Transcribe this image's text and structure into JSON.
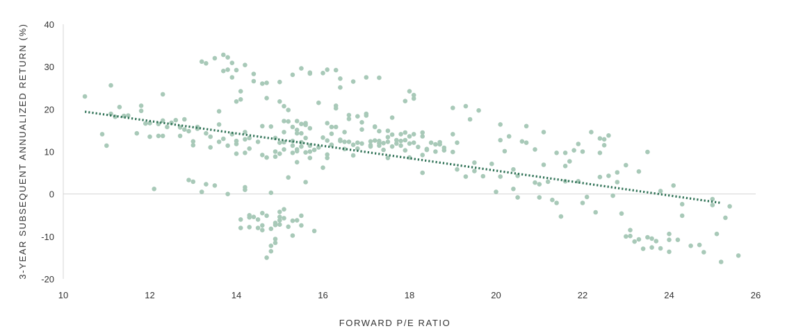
{
  "chart_data": {
    "type": "scatter",
    "xlabel": "FORWARD P/E RATIO",
    "ylabel": "3-YEAR SUBSEQUENT ANNUALIZED RETURN (%)",
    "xlim": [
      10,
      26
    ],
    "ylim": [
      -20,
      40
    ],
    "xticks": [
      "10",
      "12",
      "14",
      "16",
      "18",
      "20",
      "22",
      "24",
      "26"
    ],
    "yticks": [
      "40",
      "30",
      "20",
      "10",
      "0",
      "-10",
      "-20"
    ],
    "grid": false,
    "zero_line": true,
    "point_color": "#a8c9b8",
    "trend_color": "#2e7155",
    "trendline": {
      "style": "dotted",
      "x": [
        10.5,
        25.2
      ],
      "y": [
        19.4,
        -2.1
      ]
    },
    "points": [
      [
        10.5,
        23
      ],
      [
        10.9,
        14.1
      ],
      [
        11.0,
        11.4
      ],
      [
        11.1,
        25.6
      ],
      [
        11.1,
        18.9
      ],
      [
        11.2,
        18.2
      ],
      [
        11.3,
        20.5
      ],
      [
        11.4,
        18.4
      ],
      [
        11.5,
        18.5
      ],
      [
        11.7,
        14.3
      ],
      [
        11.8,
        20.8
      ],
      [
        11.8,
        19.6
      ],
      [
        11.9,
        16.6
      ],
      [
        12.0,
        13.5
      ],
      [
        12.0,
        16.7
      ],
      [
        12.1,
        1.2
      ],
      [
        12.2,
        16.5
      ],
      [
        12.2,
        13.7
      ],
      [
        12.3,
        23.5
      ],
      [
        12.3,
        17.3
      ],
      [
        12.3,
        13.7
      ],
      [
        12.4,
        15.8
      ],
      [
        12.5,
        16.8
      ],
      [
        12.6,
        17.4
      ],
      [
        12.7,
        13.7
      ],
      [
        12.7,
        15.7
      ],
      [
        12.8,
        15.2
      ],
      [
        12.8,
        17.6
      ],
      [
        12.9,
        3.3
      ],
      [
        12.9,
        14.8
      ],
      [
        13.0,
        2.9
      ],
      [
        13.0,
        11.5
      ],
      [
        13.0,
        12.4
      ],
      [
        13.1,
        15.4
      ],
      [
        13.1,
        15.8
      ],
      [
        13.2,
        31.2
      ],
      [
        13.2,
        0.5
      ],
      [
        13.3,
        30.8
      ],
      [
        13.3,
        2.3
      ],
      [
        13.3,
        14.3
      ],
      [
        13.4,
        11.0
      ],
      [
        13.4,
        13.5
      ],
      [
        13.5,
        2.0
      ],
      [
        13.5,
        32.0
      ],
      [
        13.6,
        19.5
      ],
      [
        13.6,
        16.4
      ],
      [
        13.6,
        12.3
      ],
      [
        13.7,
        29.0
      ],
      [
        13.7,
        32.8
      ],
      [
        13.7,
        13.0
      ],
      [
        13.8,
        0
      ],
      [
        13.8,
        32.2
      ],
      [
        13.8,
        11.4
      ],
      [
        13.8,
        29.3
      ],
      [
        13.9,
        30.9
      ],
      [
        13.9,
        27.5
      ],
      [
        13.9,
        14.1
      ],
      [
        14.0,
        12.5
      ],
      [
        14.0,
        29.2
      ],
      [
        14.0,
        11.8
      ],
      [
        14.0,
        9.5
      ],
      [
        14.0,
        21.8
      ],
      [
        14.1,
        22.3
      ],
      [
        14.1,
        -6.0
      ],
      [
        14.1,
        -8.0
      ],
      [
        14.1,
        24.2
      ],
      [
        14.2,
        30.4
      ],
      [
        14.2,
        1.6
      ],
      [
        14.2,
        12.9
      ],
      [
        14.2,
        14.6
      ],
      [
        14.2,
        9.7
      ],
      [
        14.2,
        1.0
      ],
      [
        14.3,
        -5.5
      ],
      [
        14.3,
        -7.8
      ],
      [
        14.3,
        -5.0
      ],
      [
        14.3,
        10.7
      ],
      [
        14.3,
        13.2
      ],
      [
        14.4,
        26.6
      ],
      [
        14.4,
        -5.4
      ],
      [
        14.4,
        28.3
      ],
      [
        14.5,
        -8.0
      ],
      [
        14.5,
        12.3
      ],
      [
        14.5,
        -6.0
      ],
      [
        14.6,
        16.0
      ],
      [
        14.6,
        -4.5
      ],
      [
        14.6,
        -7.4
      ],
      [
        14.6,
        9.2
      ],
      [
        14.6,
        26.0
      ],
      [
        14.6,
        -8.5
      ],
      [
        14.7,
        22.6
      ],
      [
        14.7,
        8.6
      ],
      [
        14.7,
        -5.1
      ],
      [
        14.7,
        26.2
      ],
      [
        14.7,
        -15.0
      ],
      [
        14.8,
        -8.2
      ],
      [
        14.8,
        -12.2
      ],
      [
        14.8,
        15.9
      ],
      [
        14.8,
        0.3
      ],
      [
        14.8,
        -13.5
      ],
      [
        14.9,
        -6.8
      ],
      [
        14.9,
        -11.5
      ],
      [
        14.9,
        10.0
      ],
      [
        14.9,
        -10.6
      ],
      [
        14.9,
        8.8
      ],
      [
        14.9,
        -7.3
      ],
      [
        14.9,
        13.2
      ],
      [
        15.0,
        -5.4
      ],
      [
        15.0,
        -4.2
      ],
      [
        15.0,
        26.4
      ],
      [
        15.0,
        -7.2
      ],
      [
        15.0,
        9.5
      ],
      [
        15.0,
        12.1
      ],
      [
        15.0,
        -6.2
      ],
      [
        15.0,
        21.8
      ],
      [
        15.1,
        -3.6
      ],
      [
        15.1,
        17.2
      ],
      [
        15.1,
        12.2
      ],
      [
        15.1,
        10.5
      ],
      [
        15.1,
        14.6
      ],
      [
        15.1,
        20.7
      ],
      [
        15.1,
        -5.7
      ],
      [
        15.2,
        3.9
      ],
      [
        15.2,
        17.1
      ],
      [
        15.2,
        19.8
      ],
      [
        15.2,
        -7.7
      ],
      [
        15.3,
        28.1
      ],
      [
        15.3,
        9.7
      ],
      [
        15.3,
        -6.3
      ],
      [
        15.3,
        15.8
      ],
      [
        15.3,
        11.4
      ],
      [
        15.3,
        12.5
      ],
      [
        15.3,
        -9.8
      ],
      [
        15.4,
        15.1
      ],
      [
        15.4,
        17.2
      ],
      [
        15.4,
        10.1
      ],
      [
        15.4,
        -6.2
      ],
      [
        15.4,
        14.3
      ],
      [
        15.4,
        7.5
      ],
      [
        15.4,
        10.5
      ],
      [
        15.5,
        12.2
      ],
      [
        15.5,
        -5.1
      ],
      [
        15.5,
        11.2
      ],
      [
        15.5,
        -7.4
      ],
      [
        15.5,
        16.5
      ],
      [
        15.5,
        29.6
      ],
      [
        15.5,
        14.3
      ],
      [
        15.6,
        2.8
      ],
      [
        15.6,
        16.7
      ],
      [
        15.6,
        13.2
      ],
      [
        15.6,
        9.8
      ],
      [
        15.6,
        16.3
      ],
      [
        15.7,
        28.6
      ],
      [
        15.7,
        11.4
      ],
      [
        15.7,
        15.5
      ],
      [
        15.7,
        8.5
      ],
      [
        15.7,
        10.0
      ],
      [
        15.7,
        28.4
      ],
      [
        15.8,
        -8.7
      ],
      [
        15.8,
        10.4
      ],
      [
        15.9,
        21.5
      ],
      [
        15.9,
        11.0
      ],
      [
        16.0,
        28.5
      ],
      [
        16.0,
        13.3
      ],
      [
        16.0,
        6.2
      ],
      [
        16.1,
        29.3
      ],
      [
        16.1,
        9.3
      ],
      [
        16.1,
        16.7
      ],
      [
        16.1,
        12.6
      ],
      [
        16.1,
        8.5
      ],
      [
        16.2,
        11.6
      ],
      [
        16.2,
        14.2
      ],
      [
        16.2,
        15.8
      ],
      [
        16.3,
        29.2
      ],
      [
        16.3,
        15.8
      ],
      [
        16.3,
        20.8
      ],
      [
        16.3,
        20.2
      ],
      [
        16.4,
        12.5
      ],
      [
        16.4,
        12.8
      ],
      [
        16.4,
        27.2
      ],
      [
        16.4,
        25.1
      ],
      [
        16.5,
        10.6
      ],
      [
        16.5,
        14.6
      ],
      [
        16.5,
        12.3
      ],
      [
        16.6,
        17.7
      ],
      [
        16.6,
        18.6
      ],
      [
        16.6,
        12.3
      ],
      [
        16.7,
        11.6
      ],
      [
        16.7,
        9.1
      ],
      [
        16.7,
        26.5
      ],
      [
        16.8,
        18.3
      ],
      [
        16.8,
        12.1
      ],
      [
        16.8,
        10.7
      ],
      [
        16.9,
        15.2
      ],
      [
        16.9,
        11.9
      ],
      [
        16.9,
        16.9
      ],
      [
        17.0,
        18.9
      ],
      [
        17.0,
        18.5
      ],
      [
        17.0,
        27.5
      ],
      [
        17.1,
        12.4
      ],
      [
        17.1,
        11.5
      ],
      [
        17.1,
        11.2
      ],
      [
        17.2,
        12.6
      ],
      [
        17.2,
        15.8
      ],
      [
        17.2,
        15.9
      ],
      [
        17.3,
        11.4
      ],
      [
        17.3,
        27.4
      ],
      [
        17.3,
        12.0
      ],
      [
        17.3,
        14.8
      ],
      [
        17.3,
        12.5
      ],
      [
        17.4,
        10.4
      ],
      [
        17.4,
        12.0
      ],
      [
        17.5,
        13.4
      ],
      [
        17.5,
        8.5
      ],
      [
        17.5,
        12.3
      ],
      [
        17.5,
        14.9
      ],
      [
        17.6,
        18.0
      ],
      [
        17.6,
        14.0
      ],
      [
        17.6,
        11.2
      ],
      [
        17.7,
        11.9
      ],
      [
        17.7,
        12.7
      ],
      [
        17.8,
        14.1
      ],
      [
        17.8,
        12.5
      ],
      [
        17.8,
        11.4
      ],
      [
        17.9,
        14.5
      ],
      [
        17.9,
        12.7
      ],
      [
        17.9,
        10.3
      ],
      [
        17.9,
        21.9
      ],
      [
        18.0,
        24.2
      ],
      [
        18.0,
        11.9
      ],
      [
        18.0,
        13.6
      ],
      [
        18.0,
        8.6
      ],
      [
        18.1,
        23.3
      ],
      [
        18.1,
        12.1
      ],
      [
        18.1,
        22.5
      ],
      [
        18.1,
        14.1
      ],
      [
        18.2,
        11.1
      ],
      [
        18.3,
        9.2
      ],
      [
        18.3,
        13.6
      ],
      [
        18.3,
        5.0
      ],
      [
        18.3,
        14.5
      ],
      [
        18.4,
        10.4
      ],
      [
        18.4,
        10.6
      ],
      [
        18.5,
        12.1
      ],
      [
        18.6,
        10.0
      ],
      [
        18.6,
        11.7
      ],
      [
        18.7,
        11.7
      ],
      [
        18.7,
        12.2
      ],
      [
        18.8,
        10.9
      ],
      [
        18.8,
        10.3
      ],
      [
        19.0,
        14.1
      ],
      [
        19.0,
        20.3
      ],
      [
        19.0,
        9.9
      ],
      [
        19.1,
        12.1
      ],
      [
        19.1,
        5.8
      ],
      [
        19.3,
        20.7
      ],
      [
        19.3,
        4.1
      ],
      [
        19.4,
        17.6
      ],
      [
        19.5,
        5.4
      ],
      [
        19.5,
        7.4
      ],
      [
        19.6,
        19.7
      ],
      [
        19.7,
        4.2
      ],
      [
        19.9,
        7.1
      ],
      [
        20.0,
        0.5
      ],
      [
        20.1,
        4.1
      ],
      [
        20.1,
        16.4
      ],
      [
        20.1,
        12.7
      ],
      [
        20.2,
        10.1
      ],
      [
        20.3,
        13.6
      ],
      [
        20.4,
        5.8
      ],
      [
        20.4,
        1.2
      ],
      [
        20.5,
        4.3
      ],
      [
        20.5,
        -0.8
      ],
      [
        20.6,
        12.4
      ],
      [
        20.7,
        12.1
      ],
      [
        20.7,
        16.0
      ],
      [
        20.9,
        10.5
      ],
      [
        20.9,
        2.7
      ],
      [
        21.0,
        2.3
      ],
      [
        21.0,
        -0.8
      ],
      [
        21.1,
        6.9
      ],
      [
        21.1,
        14.6
      ],
      [
        21.2,
        2.9
      ],
      [
        21.3,
        -1.4
      ],
      [
        21.4,
        9.7
      ],
      [
        21.4,
        -2.1
      ],
      [
        21.5,
        -5.3
      ],
      [
        21.6,
        3.0
      ],
      [
        21.6,
        9.7
      ],
      [
        21.6,
        6.6
      ],
      [
        21.7,
        7.7
      ],
      [
        21.8,
        10.3
      ],
      [
        21.9,
        11.8
      ],
      [
        21.9,
        3.0
      ],
      [
        22.0,
        -2.1
      ],
      [
        22.0,
        10.0
      ],
      [
        22.1,
        -0.7
      ],
      [
        22.2,
        14.6
      ],
      [
        22.3,
        -4.3
      ],
      [
        22.4,
        13.1
      ],
      [
        22.4,
        9.7
      ],
      [
        22.4,
        4.0
      ],
      [
        22.5,
        11.5
      ],
      [
        22.5,
        12.9
      ],
      [
        22.6,
        13.8
      ],
      [
        22.6,
        4.3
      ],
      [
        22.7,
        -0.4
      ],
      [
        22.8,
        5.1
      ],
      [
        22.8,
        2.8
      ],
      [
        22.9,
        -4.6
      ],
      [
        23.0,
        -10.0
      ],
      [
        23.0,
        6.8
      ],
      [
        23.1,
        -8.5
      ],
      [
        23.1,
        -9.9
      ],
      [
        23.2,
        -11.2
      ],
      [
        23.3,
        -10.7
      ],
      [
        23.3,
        5.3
      ],
      [
        23.4,
        -12.9
      ],
      [
        23.5,
        9.9
      ],
      [
        23.5,
        -10.2
      ],
      [
        23.6,
        -12.6
      ],
      [
        23.6,
        -10.5
      ],
      [
        23.7,
        -11.1
      ],
      [
        23.8,
        0.7
      ],
      [
        23.8,
        -12.8
      ],
      [
        24.0,
        -10.8
      ],
      [
        24.0,
        -13.6
      ],
      [
        24.0,
        -9.4
      ],
      [
        24.1,
        2.0
      ],
      [
        24.2,
        -10.8
      ],
      [
        24.3,
        -2.4
      ],
      [
        24.3,
        -5.1
      ],
      [
        24.5,
        -12.2
      ],
      [
        24.7,
        -12.0
      ],
      [
        24.8,
        -13.7
      ],
      [
        25.0,
        -1.2
      ],
      [
        25.0,
        -2.6
      ],
      [
        25.1,
        -9.4
      ],
      [
        25.2,
        -16.0
      ],
      [
        25.3,
        -5.6
      ],
      [
        25.4,
        -2.9
      ],
      [
        25.6,
        -14.5
      ]
    ]
  }
}
